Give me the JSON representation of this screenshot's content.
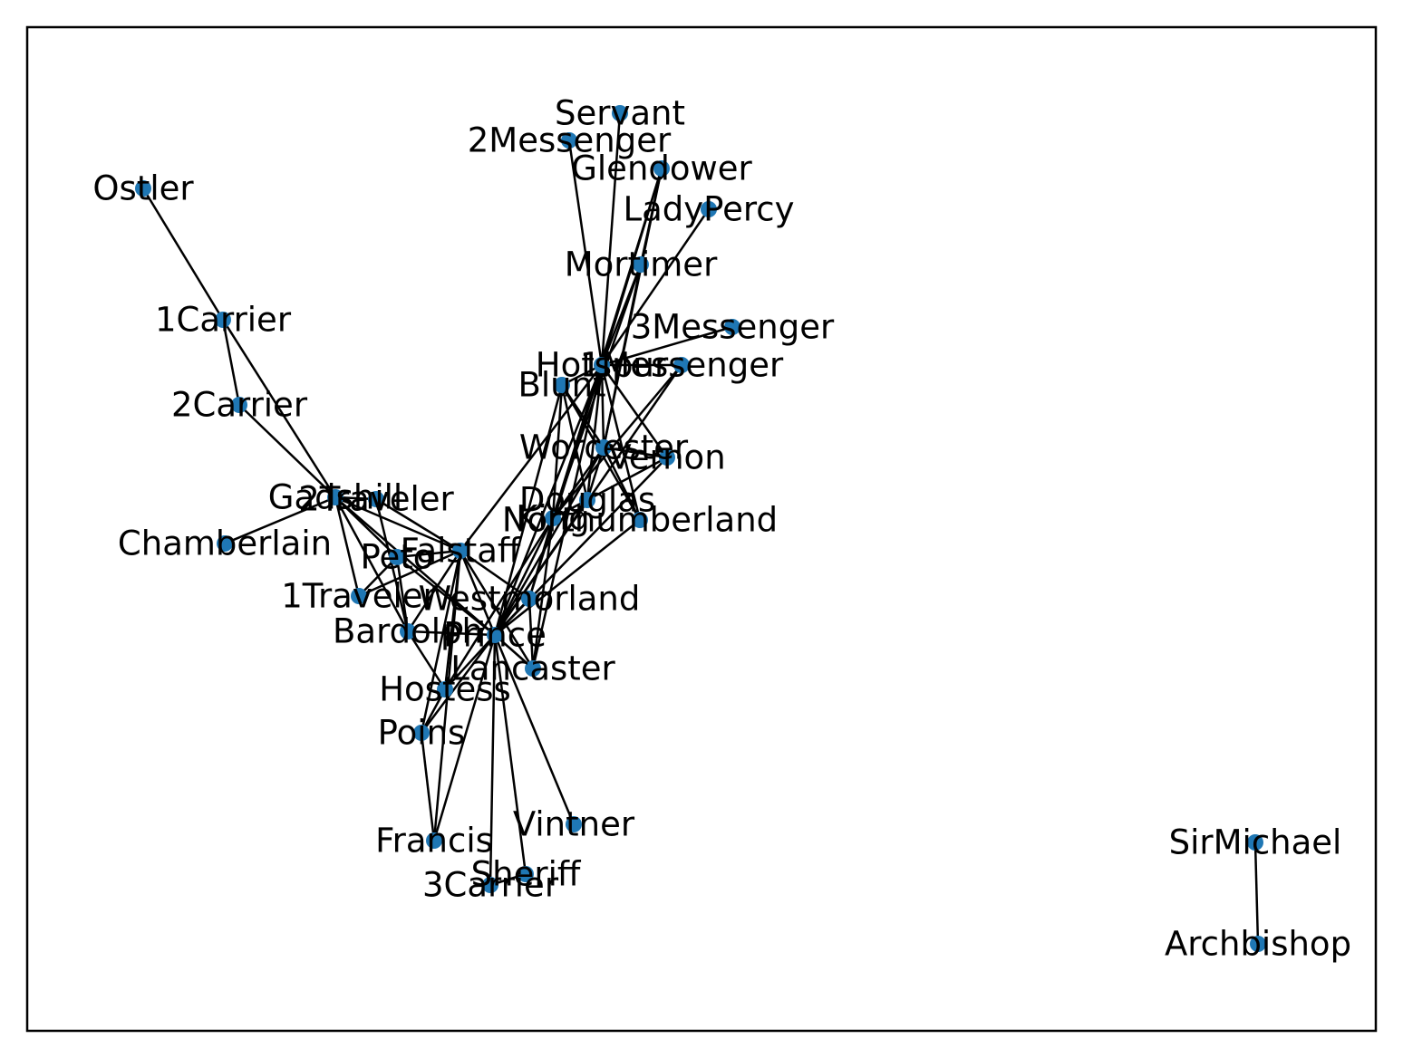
{
  "colors": {
    "node": "#1f77b4",
    "edge": "#000000",
    "frame": "#000000",
    "label": "#000000"
  },
  "nodes": [
    {
      "id": "Servant",
      "label": "Servant"
    },
    {
      "id": "2Messenger",
      "label": "2Messenger"
    },
    {
      "id": "Glendower",
      "label": "Glendower"
    },
    {
      "id": "LadyPercy",
      "label": "LadyPercy"
    },
    {
      "id": "Mortimer",
      "label": "Mortimer"
    },
    {
      "id": "3Messenger",
      "label": "3Messenger"
    },
    {
      "id": "Hotspur",
      "label": "Hotspur"
    },
    {
      "id": "1Messenger",
      "label": "1Messenger"
    },
    {
      "id": "Blunt",
      "label": "Blunt"
    },
    {
      "id": "Worcester",
      "label": "Worcester"
    },
    {
      "id": "Vernon",
      "label": "Vernon"
    },
    {
      "id": "Douglas",
      "label": "Douglas"
    },
    {
      "id": "King",
      "label": "King"
    },
    {
      "id": "Northumberland",
      "label": "Northumberland"
    },
    {
      "id": "Ostler",
      "label": "Ostler"
    },
    {
      "id": "1Carrier",
      "label": "1Carrier"
    },
    {
      "id": "2Carrier",
      "label": "2Carrier"
    },
    {
      "id": "Gadshill",
      "label": "Gadshill"
    },
    {
      "id": "2Traveler",
      "label": "2Traveler"
    },
    {
      "id": "Chamberlain",
      "label": "Chamberlain"
    },
    {
      "id": "Falstaff",
      "label": "Falstaff"
    },
    {
      "id": "Peto",
      "label": "Peto"
    },
    {
      "id": "1Traveler",
      "label": "1Traveler"
    },
    {
      "id": "Westmorland",
      "label": "Westmorland"
    },
    {
      "id": "Bardolph",
      "label": "Bardolph"
    },
    {
      "id": "Prince",
      "label": "Prince"
    },
    {
      "id": "Lancaster",
      "label": "Lancaster"
    },
    {
      "id": "Hostess",
      "label": "Hostess"
    },
    {
      "id": "Poins",
      "label": "Poins"
    },
    {
      "id": "Francis",
      "label": "Francis"
    },
    {
      "id": "Vintner",
      "label": "Vintner"
    },
    {
      "id": "Sheriff",
      "label": "Sheriff"
    },
    {
      "id": "3Carrier",
      "label": "3Carrier"
    },
    {
      "id": "SirMichael",
      "label": "SirMichael"
    },
    {
      "id": "Archbishop",
      "label": "Archbishop"
    }
  ],
  "edges": [
    [
      "Ostler",
      "1Carrier"
    ],
    [
      "1Carrier",
      "2Carrier"
    ],
    [
      "1Carrier",
      "Gadshill"
    ],
    [
      "2Carrier",
      "Gadshill"
    ],
    [
      "Gadshill",
      "Chamberlain"
    ],
    [
      "Gadshill",
      "Falstaff"
    ],
    [
      "Gadshill",
      "Peto"
    ],
    [
      "Gadshill",
      "Bardolph"
    ],
    [
      "Gadshill",
      "1Traveler"
    ],
    [
      "Gadshill",
      "Prince"
    ],
    [
      "Gadshill",
      "2Traveler"
    ],
    [
      "2Traveler",
      "Falstaff"
    ],
    [
      "2Traveler",
      "Bardolph"
    ],
    [
      "1Traveler",
      "Falstaff"
    ],
    [
      "1Traveler",
      "Peto"
    ],
    [
      "Falstaff",
      "Peto"
    ],
    [
      "Falstaff",
      "Bardolph"
    ],
    [
      "Falstaff",
      "Prince"
    ],
    [
      "Falstaff",
      "Hostess"
    ],
    [
      "Falstaff",
      "Poins"
    ],
    [
      "Falstaff",
      "Westmorland"
    ],
    [
      "Falstaff",
      "Lancaster"
    ],
    [
      "Falstaff",
      "Hotspur"
    ],
    [
      "Falstaff",
      "Francis"
    ],
    [
      "Peto",
      "Prince"
    ],
    [
      "Peto",
      "Bardolph"
    ],
    [
      "Bardolph",
      "Prince"
    ],
    [
      "Bardolph",
      "Hostess"
    ],
    [
      "Prince",
      "Hostess"
    ],
    [
      "Prince",
      "Poins"
    ],
    [
      "Prince",
      "Francis"
    ],
    [
      "Prince",
      "Vintner"
    ],
    [
      "Prince",
      "Sheriff"
    ],
    [
      "Prince",
      "3Carrier"
    ],
    [
      "Prince",
      "Westmorland"
    ],
    [
      "Prince",
      "Lancaster"
    ],
    [
      "Prince",
      "King"
    ],
    [
      "Prince",
      "Hotspur"
    ],
    [
      "Prince",
      "Douglas"
    ],
    [
      "Prince",
      "Blunt"
    ],
    [
      "Prince",
      "Worcester"
    ],
    [
      "Prince",
      "Vernon"
    ],
    [
      "Prince",
      "Northumberland"
    ],
    [
      "Prince",
      "1Messenger"
    ],
    [
      "Hostess",
      "Poins"
    ],
    [
      "Hostess",
      "King"
    ],
    [
      "Poins",
      "Francis"
    ],
    [
      "Sheriff",
      "3Carrier"
    ],
    [
      "Hotspur",
      "Servant"
    ],
    [
      "Hotspur",
      "2Messenger"
    ],
    [
      "Hotspur",
      "Glendower"
    ],
    [
      "Hotspur",
      "LadyPercy"
    ],
    [
      "Hotspur",
      "Mortimer"
    ],
    [
      "Hotspur",
      "3Messenger"
    ],
    [
      "Hotspur",
      "1Messenger"
    ],
    [
      "Hotspur",
      "Blunt"
    ],
    [
      "Hotspur",
      "Worcester"
    ],
    [
      "Hotspur",
      "Vernon"
    ],
    [
      "Hotspur",
      "Douglas"
    ],
    [
      "Hotspur",
      "King"
    ],
    [
      "Hotspur",
      "Northumberland"
    ],
    [
      "Hotspur",
      "Lancaster"
    ],
    [
      "Hotspur",
      "Westmorland"
    ],
    [
      "Glendower",
      "Mortimer"
    ],
    [
      "Glendower",
      "Worcester"
    ],
    [
      "Glendower",
      "King"
    ],
    [
      "Mortimer",
      "Worcester"
    ],
    [
      "Mortimer",
      "King"
    ],
    [
      "Blunt",
      "King"
    ],
    [
      "Blunt",
      "Douglas"
    ],
    [
      "Blunt",
      "Worcester"
    ],
    [
      "Blunt",
      "Northumberland"
    ],
    [
      "Worcester",
      "King"
    ],
    [
      "Worcester",
      "Vernon"
    ],
    [
      "Worcester",
      "Douglas"
    ],
    [
      "Worcester",
      "Northumberland"
    ],
    [
      "Douglas",
      "King"
    ],
    [
      "Douglas",
      "Vernon"
    ],
    [
      "King",
      "Westmorland"
    ],
    [
      "King",
      "Lancaster"
    ],
    [
      "King",
      "1Messenger"
    ],
    [
      "Westmorland",
      "Lancaster"
    ],
    [
      "SirMichael",
      "Archbishop"
    ]
  ]
}
